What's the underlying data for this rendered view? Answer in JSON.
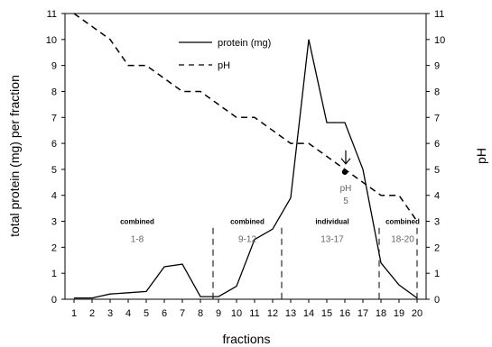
{
  "chart_data": {
    "type": "line",
    "xlabel": "fractions",
    "ylabel_left": "total protein (mg) per fraction",
    "ylabel_right": "pH",
    "x_ticks": [
      1,
      2,
      3,
      4,
      5,
      6,
      7,
      8,
      9,
      10,
      11,
      12,
      13,
      14,
      15,
      16,
      17,
      18,
      19,
      20
    ],
    "y_ticks": [
      0,
      1,
      2,
      3,
      4,
      5,
      6,
      7,
      8,
      9,
      10,
      11
    ],
    "xlim": [
      0.5,
      20.5
    ],
    "ylim": [
      0,
      11
    ],
    "grid": false,
    "legend_position": "top-center",
    "series": [
      {
        "name": "protein (mg)",
        "style": "solid",
        "x": [
          1,
          2,
          3,
          4,
          5,
          6,
          7,
          8,
          9,
          10,
          11,
          12,
          13,
          14,
          15,
          16,
          17,
          18,
          19,
          20
        ],
        "y": [
          0.05,
          0.05,
          0.2,
          0.25,
          0.3,
          1.25,
          1.35,
          0.1,
          0.1,
          0.5,
          2.3,
          2.7,
          3.9,
          10,
          6.8,
          6.8,
          5.0,
          1.4,
          0.55,
          0.05
        ]
      },
      {
        "name": "pH",
        "style": "dashed",
        "x": [
          1,
          2,
          3,
          4,
          5,
          6,
          7,
          8,
          9,
          10,
          11,
          12,
          13,
          14,
          15,
          16,
          17,
          18,
          19,
          20
        ],
        "y": [
          11,
          10.5,
          10,
          9,
          9,
          8.5,
          8,
          8,
          7.5,
          7,
          7,
          6.5,
          6,
          6,
          5.5,
          5,
          4.5,
          4,
          4,
          3
        ]
      }
    ],
    "separators": [
      8.7,
      12.5,
      17.9,
      20
    ],
    "groups": [
      {
        "title": "combined",
        "range": "1-8",
        "x": 4.5,
        "y_title": 2.9,
        "y_range": 2.2
      },
      {
        "title": "combined",
        "range": "9-12",
        "x": 10.6,
        "y_title": 2.9,
        "y_range": 2.2
      },
      {
        "title": "individual",
        "range": "13-17",
        "x": 15.3,
        "y_title": 2.9,
        "y_range": 2.2
      },
      {
        "title": "combined",
        "range": "18-20",
        "x": 19.2,
        "y_title": 2.9,
        "y_range": 2.2
      }
    ],
    "annotation": {
      "line1": "pH",
      "line2": "5",
      "x": 16,
      "y": 4.9
    }
  }
}
